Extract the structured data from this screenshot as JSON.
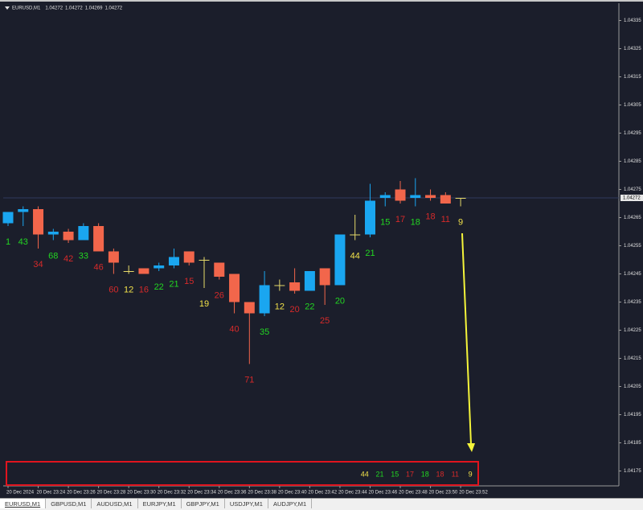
{
  "chart_data": {
    "type": "candlestick",
    "title": "EURUSD,M1",
    "header_values": [
      1.04272,
      1.04272,
      1.04269,
      1.04272
    ],
    "current_price": 1.04272,
    "categories": [
      "20 Dec 2024",
      null,
      "20 Dec 23:24",
      null,
      "20 Dec 23:26",
      null,
      "20 Dec 23:28",
      null,
      "20 Dec 23:30",
      null,
      "20 Dec 23:32",
      null,
      "20 Dec 23:34",
      null,
      "20 Dec 23:36",
      null,
      "20 Dec 23:38",
      null,
      "20 Dec 23:40",
      null,
      "20 Dec 23:42",
      null,
      "20 Dec 23:44",
      null,
      "20 Dec 23:46",
      null,
      "20 Dec 23:48",
      null,
      "20 Dec 23:50",
      null,
      "20 Dec 23:52"
    ],
    "open": [
      1.04263,
      1.04267,
      1.04268,
      1.04259,
      1.0426,
      1.04257,
      1.04262,
      1.04253,
      1.04246,
      1.04247,
      1.04247,
      1.04248,
      1.04253,
      1.0425,
      1.04249,
      1.04245,
      1.04235,
      1.04231,
      1.04241,
      1.04242,
      1.04239,
      1.04247,
      1.04241,
      1.04259,
      1.04259,
      1.04272,
      1.04275,
      1.04272,
      1.04273,
      1.04273,
      1.04272
    ],
    "high": [
      1.04267,
      1.04269,
      1.04269,
      1.04261,
      1.04261,
      1.04263,
      1.04263,
      1.04254,
      1.04248,
      1.04247,
      1.04249,
      1.04254,
      1.04253,
      1.04251,
      1.04249,
      1.04245,
      1.04235,
      1.04246,
      1.04243,
      1.04247,
      1.04246,
      1.04247,
      1.04259,
      1.04266,
      1.04277,
      1.04274,
      1.04278,
      1.04279,
      1.04275,
      1.04274,
      1.04272
    ],
    "low": [
      1.04262,
      1.04262,
      1.04254,
      1.04257,
      1.04256,
      1.04257,
      1.04253,
      1.04245,
      1.04245,
      1.04245,
      1.04246,
      1.04247,
      1.04248,
      1.0424,
      1.04243,
      1.04231,
      1.04213,
      1.0423,
      1.04239,
      1.04238,
      1.04239,
      1.04234,
      1.04241,
      1.04257,
      1.04258,
      1.04269,
      1.0427,
      1.04269,
      1.04271,
      1.0427,
      1.04269
    ],
    "close": [
      1.04267,
      1.04268,
      1.04259,
      1.0426,
      1.04257,
      1.04262,
      1.04253,
      1.04249,
      1.04246,
      1.04245,
      1.04248,
      1.04251,
      1.04249,
      1.0425,
      1.04244,
      1.04235,
      1.04231,
      1.04241,
      1.04241,
      1.04239,
      1.04246,
      1.04241,
      1.04259,
      1.04259,
      1.04271,
      1.04273,
      1.04271,
      1.04273,
      1.04272,
      1.0427,
      1.04272
    ],
    "counts": [
      1,
      43,
      34,
      68,
      42,
      33,
      46,
      60,
      12,
      16,
      22,
      21,
      15,
      19,
      26,
      40,
      71,
      35,
      12,
      20,
      22,
      25,
      20,
      44,
      21,
      15,
      17,
      18,
      18,
      11,
      9
    ],
    "ylim": [
      1.0417,
      1.0434
    ],
    "yticks": [
      1.04175,
      1.04185,
      1.04195,
      1.04205,
      1.04215,
      1.04225,
      1.04235,
      1.04245,
      1.04255,
      1.04265,
      1.04275,
      1.04285,
      1.04295,
      1.04305,
      1.04315,
      1.04325,
      1.04335
    ],
    "colors": {
      "bull": "#1aa6f0",
      "bear": "#f2664b",
      "doji": "#e6d96a",
      "count_bull": "#22d622",
      "count_bear": "#d62a2a",
      "count_doji": "#f2e24a",
      "background": "#1b1e2b",
      "price_line": "#2f3a5c"
    }
  },
  "tabs": [
    "EURUSD,M1",
    "GBPUSD,M1",
    "AUDUSD,M1",
    "EURJPY,M1",
    "GBPJPY,M1",
    "USDJPY,M1",
    "AUDJPY,M1"
  ]
}
